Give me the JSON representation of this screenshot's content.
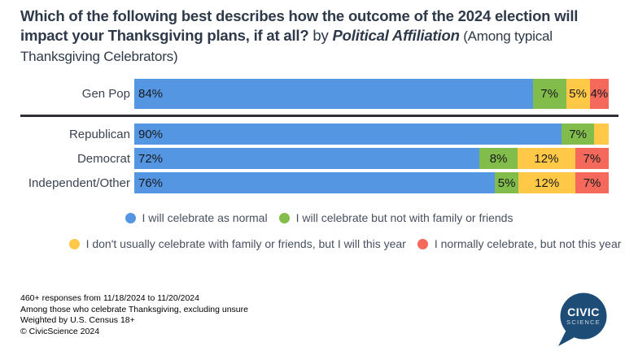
{
  "title": {
    "question": "Which of the following best describes how the outcome of the 2024 election will impact your Thanksgiving plans, if at all?",
    "by": " by ",
    "topic": "Political Affiliation",
    "subtitle": " (Among typical Thanksgiving Celebrators)"
  },
  "chart_data": {
    "type": "bar",
    "stacked": true,
    "orientation": "horizontal",
    "unit": "%",
    "min_label_value": 4,
    "categories": [
      "Gen Pop",
      "Republican",
      "Democrat",
      "Independent/Other"
    ],
    "series": [
      {
        "name": "I will celebrate as normal",
        "color": "#5596E3",
        "values": [
          84,
          90,
          72,
          76
        ]
      },
      {
        "name": "I will celebrate but not with family or friends",
        "color": "#82BD4C",
        "values": [
          7,
          7,
          8,
          5
        ]
      },
      {
        "name": "I don't usually celebrate with family or friends, but I will this year",
        "color": "#FFC847",
        "values": [
          5,
          3,
          12,
          12
        ]
      },
      {
        "name": "I normally celebrate, but not this year",
        "color": "#F4695B",
        "values": [
          4,
          0,
          7,
          7
        ]
      }
    ],
    "legend_rows": [
      [
        0,
        1
      ],
      [
        2,
        3
      ]
    ],
    "xlim": [
      0,
      100
    ],
    "grid": false,
    "legend_position": "bottom"
  },
  "footnotes": [
    "460+ responses from 11/18/2024 to 11/20/2024",
    "Among those who celebrate Thanksgiving, excluding unsure",
    "Weighted by U.S. Census 18+",
    "© CivicScience 2024"
  ],
  "logo": {
    "line1": "CIVIC",
    "line2": "SCIENCE",
    "color": "#1d4d77"
  },
  "colors": {
    "title_text": "#2e3a49",
    "divider": "#2e3033",
    "legend_text": "#46505e"
  }
}
